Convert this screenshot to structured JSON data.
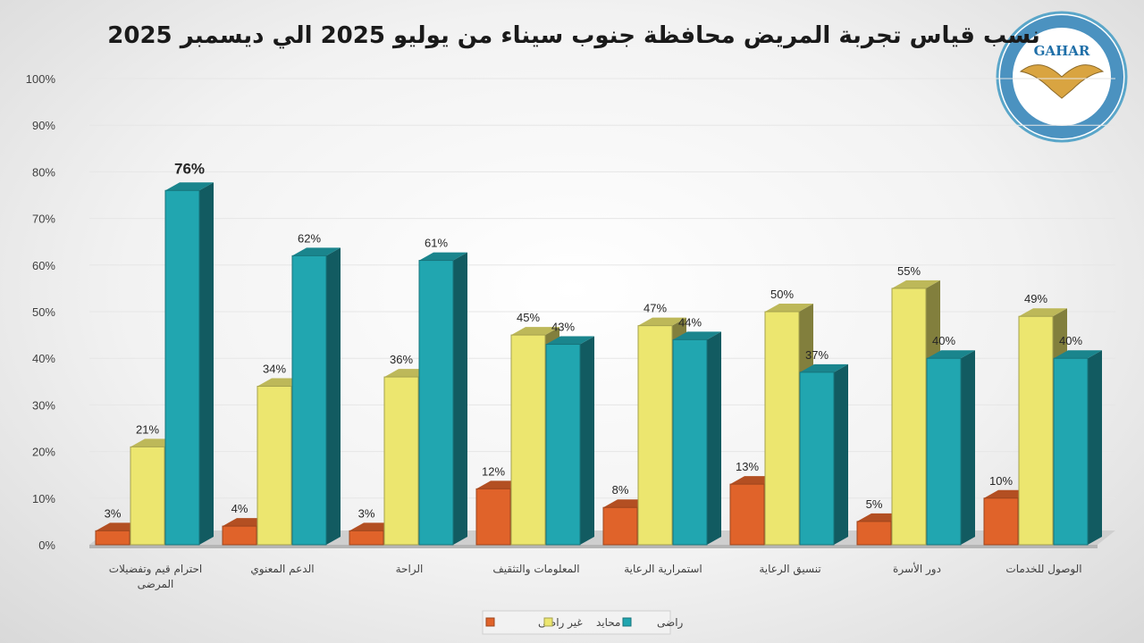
{
  "chart_data": {
    "type": "bar",
    "title": "نسب قياس تجربة المريض محافظة جنوب سيناء من يوليو 2025 الي ديسمبر 2025",
    "categories": [
      "احترام قيم وتفضيلات المرضى",
      "الدعم المعنوي",
      "الراحة",
      "المعلومات والتثقيف",
      "استمرارية الرعاية",
      "تنسيق الرعاية",
      "دور الأسرة",
      "الوصول للخدمات"
    ],
    "series": [
      {
        "name": "غير راضى",
        "color": "#e0632a",
        "values": [
          3,
          4,
          3,
          12,
          8,
          13,
          5,
          10
        ]
      },
      {
        "name": "محايد",
        "color": "#ece66f",
        "values": [
          21,
          34,
          36,
          45,
          47,
          50,
          55,
          49
        ]
      },
      {
        "name": "راضى",
        "color": "#21a6b0",
        "values": [
          76,
          62,
          61,
          43,
          44,
          37,
          40,
          40
        ]
      }
    ],
    "ylim": [
      0,
      100
    ],
    "yticks": [
      "0%",
      "10%",
      "20%",
      "30%",
      "40%",
      "50%",
      "60%",
      "70%",
      "80%",
      "90%",
      "100%"
    ],
    "value_suffix": "%",
    "grid": true,
    "legend_position": "bottom"
  },
  "logo": {
    "text": "GAHAR",
    "icon": "gahar-eagle-logo"
  }
}
